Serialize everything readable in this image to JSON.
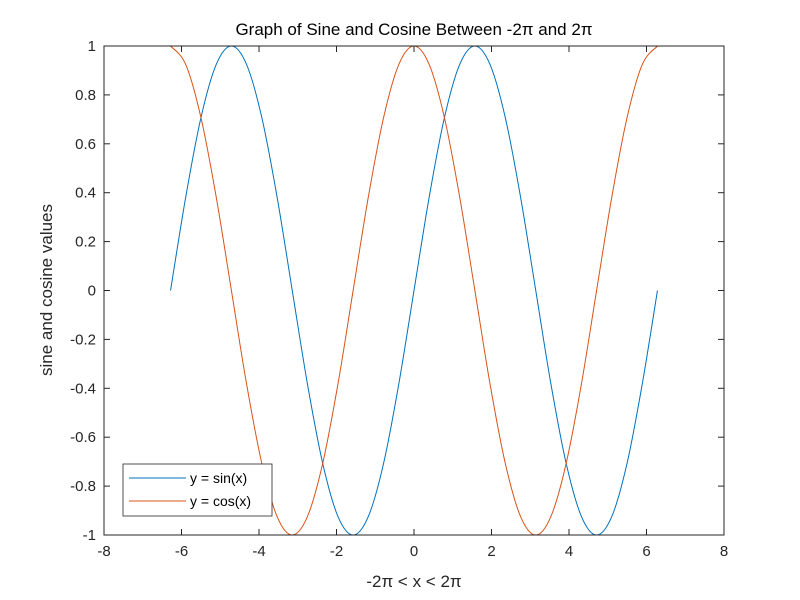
{
  "chart_data": {
    "type": "line",
    "title": "Graph of Sine and Cosine Between -2π and 2π",
    "xlabel": "-2π < x < 2π",
    "ylabel": "sine and cosine values",
    "xlim": [
      -8,
      8
    ],
    "ylim": [
      -1,
      1
    ],
    "xticks": [
      -8,
      -6,
      -4,
      -2,
      0,
      2,
      4,
      6,
      8
    ],
    "yticks": [
      -1,
      -0.8,
      -0.6,
      -0.4,
      -0.2,
      0,
      0.2,
      0.4,
      0.6,
      0.8,
      1
    ],
    "xtick_labels": [
      "-8",
      "-6",
      "-4",
      "-2",
      "0",
      "2",
      "4",
      "6",
      "8"
    ],
    "ytick_labels": [
      "-1",
      "-0.8",
      "-0.6",
      "-0.4",
      "-0.2",
      "0",
      "0.2",
      "0.4",
      "0.6",
      "0.8",
      "1"
    ],
    "grid": false,
    "legend_position": "bottom-left",
    "x": [
      -6.283,
      -5.89,
      -5.498,
      -5.105,
      -4.712,
      -4.32,
      -3.927,
      -3.534,
      -3.142,
      -2.749,
      -2.356,
      -1.963,
      -1.571,
      -1.178,
      -0.785,
      -0.393,
      0,
      0.393,
      0.785,
      1.178,
      1.571,
      1.963,
      2.356,
      2.749,
      3.142,
      3.534,
      3.927,
      4.32,
      4.712,
      5.105,
      5.498,
      5.89,
      6.283
    ],
    "series": [
      {
        "name": "y = sin(x)",
        "color": "#0072BD",
        "values": [
          0,
          0.383,
          0.707,
          0.924,
          1,
          0.924,
          0.707,
          0.383,
          0,
          -0.383,
          -0.707,
          -0.924,
          -1,
          -0.924,
          -0.707,
          -0.383,
          0,
          0.383,
          0.707,
          0.924,
          1,
          0.924,
          0.707,
          0.383,
          0,
          -0.383,
          -0.707,
          -0.924,
          -1,
          -0.924,
          -0.707,
          -0.383,
          0
        ]
      },
      {
        "name": "y = cos(x)",
        "color": "#D95319",
        "values": [
          1,
          0.924,
          0.707,
          0.383,
          0,
          -0.383,
          -0.707,
          -0.924,
          -1,
          -0.924,
          -0.707,
          -0.383,
          0,
          0.383,
          0.707,
          0.924,
          1,
          0.924,
          0.707,
          0.383,
          0,
          -0.383,
          -0.707,
          -0.924,
          -1,
          -0.924,
          -0.707,
          -0.383,
          0,
          0.383,
          0.707,
          0.924,
          1
        ]
      }
    ]
  }
}
